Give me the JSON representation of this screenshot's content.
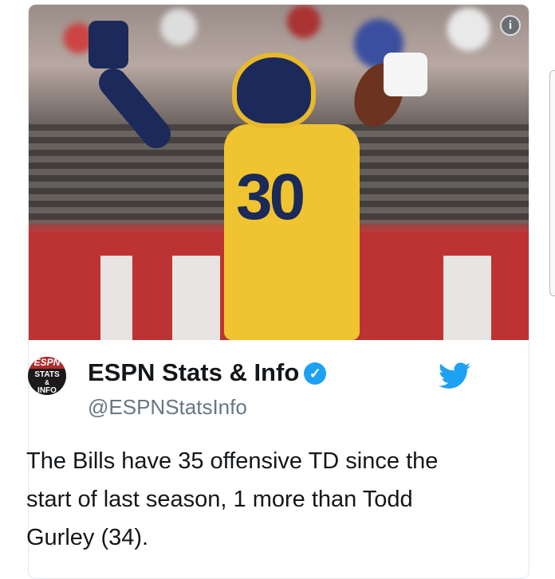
{
  "tweet": {
    "author_name": "ESPN Stats & Info",
    "handle": "@ESPNStatsInfo",
    "text": "The Bills have 35 offensive TD since the start of last season, 1 more than Todd Gurley (34).",
    "avatar": {
      "top": "ESPN",
      "line1": "STATS",
      "line2": "&",
      "line3": "INFO"
    },
    "jersey_number": "30",
    "info_glyph": "i",
    "verified_glyph": "✓"
  },
  "colors": {
    "twitter_blue": "#1da1f2",
    "handle_gray": "#657786",
    "text": "#14171a"
  }
}
